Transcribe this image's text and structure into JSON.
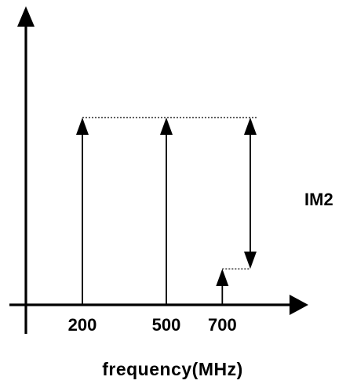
{
  "chart_data": {
    "type": "bar",
    "title": "",
    "xlabel": "frequency(MHz)",
    "ylabel": "",
    "x_unit": "MHz",
    "xlim": [
      0,
      850
    ],
    "ylim": [
      0,
      1.0
    ],
    "grid": false,
    "series": [
      {
        "name": "",
        "tones": [
          {
            "x": 200,
            "y": 0.78
          },
          {
            "x": 500,
            "y": 0.78
          },
          {
            "x": 700,
            "y": 0.15
          }
        ]
      }
    ],
    "x_tick_labels": [
      {
        "x": 200,
        "text": "200"
      },
      {
        "x": 500,
        "text": "500"
      },
      {
        "x": 700,
        "text": "700"
      }
    ],
    "reference_x": 800,
    "annotations": [
      {
        "label": "IM2",
        "from_level": 0.78,
        "to_level": 0.15
      }
    ]
  },
  "colors": {
    "ink": "#000000",
    "background": "#ffffff"
  }
}
